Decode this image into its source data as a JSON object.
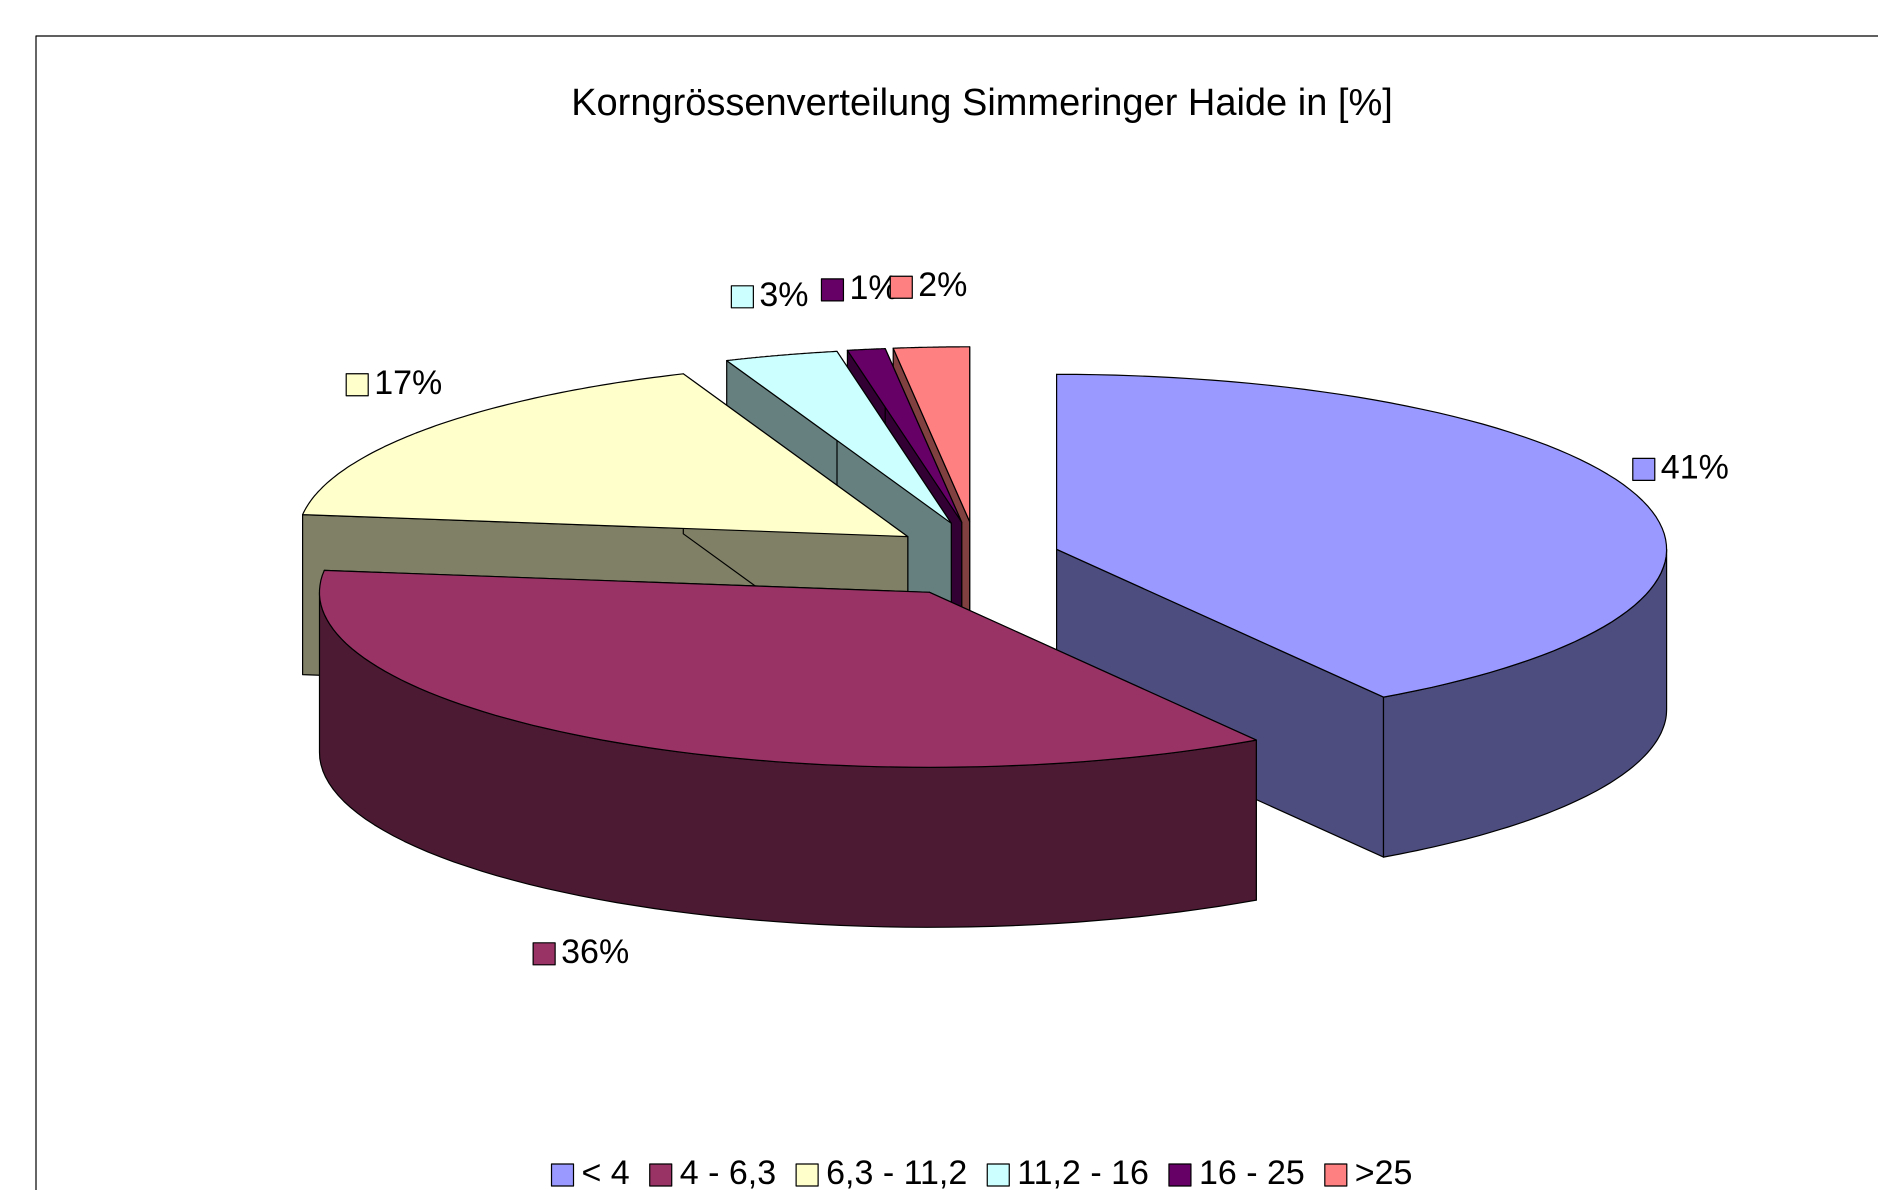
{
  "chart_data": {
    "type": "pie3d",
    "title": "Korngrössenverteilung Simmeringer Haide in [%]",
    "categories": [
      "< 4",
      "4 - 6,3",
      "6,3 - 11,2",
      "11,2 - 16",
      "16 - 25",
      ">25"
    ],
    "values": [
      41,
      36,
      17,
      3,
      1,
      2
    ],
    "value_labels": [
      "41%",
      "36%",
      "17%",
      "3%",
      "1%",
      "2%"
    ],
    "colors": [
      "#9999ff",
      "#993366",
      "#ffffcc",
      "#ccffff",
      "#660066",
      "#ff8080"
    ],
    "legend": "bottom"
  }
}
